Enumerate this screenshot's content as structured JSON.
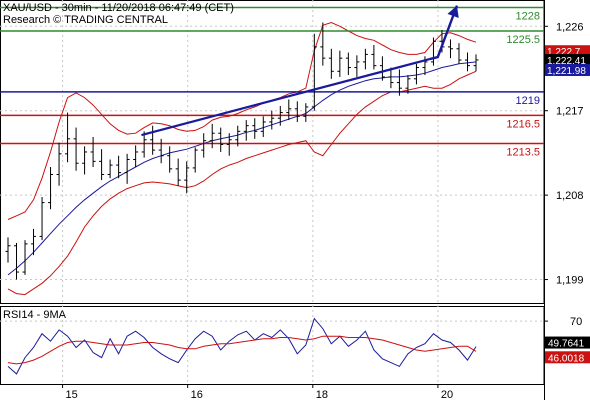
{
  "header": {
    "title_line": "XAU/USD - 30min - 11/20/2018 06:47:49 (CET)",
    "source_line": "Research © TRADING CENTRAL"
  },
  "chart_data": [
    {
      "type": "candlestick",
      "price_axis_ticks": [
        "1,226",
        "1,217",
        "1,208",
        "1,199"
      ],
      "price_axis_values": [
        1226,
        1217,
        1208,
        1199
      ],
      "ylim": [
        1196.5,
        1228.8
      ],
      "x_axis_ticks": [
        "15",
        "16",
        "18",
        "20"
      ],
      "levels": [
        {
          "name": "resistance-1228",
          "label": "1228",
          "value": 1228,
          "color": "#2e8b2e"
        },
        {
          "name": "resistance-1225-5",
          "label": "1225.5",
          "value": 1225.5,
          "color": "#2e8b2e"
        },
        {
          "name": "pivot-1219",
          "label": "1219",
          "value": 1219,
          "color": "#1a1a9c"
        },
        {
          "name": "support-1216-5",
          "label": "1216.5",
          "value": 1216.5,
          "color": "#cc1111"
        },
        {
          "name": "support-1213-5",
          "label": "1213.5",
          "value": 1213.5,
          "color": "#cc1111"
        }
      ],
      "price_tags": [
        {
          "label": "1,222.7",
          "value": 1222.7,
          "bg": "#cc1111"
        },
        {
          "label": "1,222.41",
          "value": 1222.41,
          "bg": "#000000"
        },
        {
          "label": "1,221.98",
          "value": 1221.98,
          "bg": "#1a1a9c"
        }
      ],
      "trendline": {
        "from": [
          0.26,
          1214.4
        ],
        "to": [
          0.79,
          1222.5
        ],
        "color": "#1a1a9c"
      },
      "projection_arrow": {
        "from": [
          0.79,
          1222.5
        ],
        "to": [
          0.84,
          1228.2
        ],
        "color": "#1a1a9c"
      },
      "ohlc": [
        [
          1202.0,
          1203.5,
          1200.8,
          1202.6
        ],
        [
          1202.6,
          1202.9,
          1199.0,
          1199.8
        ],
        [
          1199.8,
          1203.2,
          1199.5,
          1202.8
        ],
        [
          1202.8,
          1204.4,
          1201.6,
          1203.6
        ],
        [
          1203.6,
          1207.8,
          1203.2,
          1207.2
        ],
        [
          1207.2,
          1211.0,
          1206.5,
          1210.2
        ],
        [
          1210.2,
          1213.6,
          1209.0,
          1212.4
        ],
        [
          1212.4,
          1216.8,
          1211.5,
          1214.0
        ],
        [
          1214.0,
          1215.2,
          1210.6,
          1211.4
        ],
        [
          1211.4,
          1213.2,
          1210.2,
          1212.6
        ],
        [
          1212.6,
          1214.2,
          1211.0,
          1211.6
        ],
        [
          1211.6,
          1212.9,
          1209.6,
          1210.2
        ],
        [
          1210.2,
          1211.8,
          1209.8,
          1211.2
        ],
        [
          1211.2,
          1212.2,
          1209.8,
          1210.4
        ],
        [
          1210.4,
          1212.4,
          1209.2,
          1211.8
        ],
        [
          1211.8,
          1213.3,
          1211.0,
          1212.6
        ],
        [
          1212.6,
          1214.8,
          1212.0,
          1213.9
        ],
        [
          1213.9,
          1215.4,
          1212.3,
          1212.8
        ],
        [
          1212.8,
          1214.0,
          1211.4,
          1212.2
        ],
        [
          1212.2,
          1213.2,
          1210.4,
          1210.8
        ],
        [
          1210.8,
          1211.9,
          1209.0,
          1209.6
        ],
        [
          1209.6,
          1211.6,
          1208.2,
          1210.9
        ],
        [
          1210.9,
          1213.1,
          1210.4,
          1212.8
        ],
        [
          1212.8,
          1214.6,
          1212.0,
          1213.8
        ],
        [
          1213.8,
          1215.6,
          1213.0,
          1214.6
        ],
        [
          1214.6,
          1215.2,
          1212.6,
          1213.4
        ],
        [
          1213.4,
          1214.6,
          1212.2,
          1213.9
        ],
        [
          1213.9,
          1215.4,
          1213.2,
          1214.8
        ],
        [
          1214.8,
          1216.0,
          1213.8,
          1215.4
        ],
        [
          1215.4,
          1216.2,
          1214.0,
          1214.8
        ],
        [
          1214.8,
          1216.4,
          1214.2,
          1215.8
        ],
        [
          1215.8,
          1217.0,
          1215.0,
          1216.2
        ],
        [
          1216.2,
          1217.5,
          1215.4,
          1216.8
        ],
        [
          1216.8,
          1218.2,
          1216.0,
          1217.2
        ],
        [
          1217.2,
          1218.0,
          1215.8,
          1216.4
        ],
        [
          1216.4,
          1217.8,
          1215.8,
          1217.4
        ],
        [
          1217.4,
          1225.2,
          1217.0,
          1223.8
        ],
        [
          1223.8,
          1226.4,
          1221.8,
          1222.6
        ],
        [
          1222.6,
          1223.6,
          1220.4,
          1221.2
        ],
        [
          1221.2,
          1223.4,
          1220.6,
          1222.6
        ],
        [
          1222.6,
          1223.2,
          1220.8,
          1221.6
        ],
        [
          1221.6,
          1222.9,
          1220.6,
          1222.2
        ],
        [
          1222.2,
          1223.6,
          1221.4,
          1223.0
        ],
        [
          1223.0,
          1224.0,
          1221.4,
          1221.8
        ],
        [
          1221.8,
          1222.8,
          1220.2,
          1220.6
        ],
        [
          1220.6,
          1221.6,
          1219.4,
          1220.0
        ],
        [
          1220.0,
          1221.4,
          1218.6,
          1219.4
        ],
        [
          1219.4,
          1220.8,
          1218.8,
          1220.4
        ],
        [
          1220.4,
          1222.0,
          1219.8,
          1221.6
        ],
        [
          1221.6,
          1222.8,
          1220.8,
          1222.2
        ],
        [
          1222.2,
          1224.8,
          1221.8,
          1224.4
        ],
        [
          1224.4,
          1225.6,
          1223.2,
          1223.8
        ],
        [
          1223.8,
          1224.6,
          1222.6,
          1223.6
        ],
        [
          1223.6,
          1224.2,
          1222.0,
          1222.4
        ],
        [
          1222.4,
          1223.2,
          1221.2,
          1221.8
        ],
        [
          1221.8,
          1223.0,
          1221.2,
          1222.41
        ]
      ],
      "ma_series": [
        1199.5,
        1200.2,
        1201.0,
        1201.9,
        1202.9,
        1203.9,
        1204.9,
        1205.8,
        1206.7,
        1207.5,
        1208.2,
        1208.9,
        1209.5,
        1210.0,
        1210.5,
        1211.0,
        1211.5,
        1211.9,
        1212.2,
        1212.5,
        1212.7,
        1212.9,
        1213.2,
        1213.5,
        1213.8,
        1214.0,
        1214.2,
        1214.4,
        1214.7,
        1214.9,
        1215.2,
        1215.5,
        1215.8,
        1216.1,
        1216.4,
        1216.7,
        1217.4,
        1218.1,
        1218.7,
        1219.2,
        1219.6,
        1219.9,
        1220.2,
        1220.4,
        1220.5,
        1220.6,
        1220.6,
        1220.7,
        1220.8,
        1221.0,
        1221.3,
        1221.6,
        1221.8,
        1222.0,
        1222.1,
        1222.2
      ],
      "bb_upper": [
        1205.4,
        1205.8,
        1206.2,
        1207.5,
        1209.8,
        1212.6,
        1215.8,
        1218.4,
        1218.9,
        1218.4,
        1217.6,
        1216.6,
        1215.6,
        1214.9,
        1214.5,
        1214.6,
        1215.2,
        1215.7,
        1215.6,
        1215.4,
        1215.0,
        1214.8,
        1214.9,
        1215.3,
        1216.0,
        1216.3,
        1216.4,
        1216.7,
        1217.1,
        1217.4,
        1217.8,
        1218.1,
        1218.4,
        1218.8,
        1219.0,
        1219.4,
        1223.4,
        1226.1,
        1226.4,
        1226.0,
        1225.5,
        1225.0,
        1224.7,
        1224.5,
        1224.0,
        1223.5,
        1223.2,
        1223.0,
        1223.0,
        1223.2,
        1224.3,
        1225.2,
        1225.3,
        1225.0,
        1224.6,
        1224.3
      ],
      "bb_lower": [
        1198.0,
        1197.5,
        1197.4,
        1198.0,
        1198.6,
        1199.4,
        1200.4,
        1201.5,
        1203.0,
        1204.6,
        1205.8,
        1206.8,
        1207.6,
        1208.2,
        1208.7,
        1209.0,
        1209.3,
        1209.4,
        1209.3,
        1209.2,
        1209.0,
        1208.8,
        1209.0,
        1209.5,
        1210.2,
        1210.8,
        1211.2,
        1211.5,
        1211.9,
        1212.2,
        1212.5,
        1212.8,
        1213.1,
        1213.4,
        1213.6,
        1213.8,
        1212.6,
        1212.2,
        1213.4,
        1214.6,
        1215.6,
        1216.6,
        1217.4,
        1218.0,
        1218.6,
        1219.0,
        1219.0,
        1219.2,
        1219.4,
        1219.6,
        1219.4,
        1219.4,
        1219.8,
        1220.4,
        1220.8,
        1221.2
      ]
    },
    {
      "type": "line",
      "title": "RSI14 - 9MA",
      "y_axis_ticks": [
        "70"
      ],
      "y_axis_values": [
        70
      ],
      "ylim": [
        20,
        82
      ],
      "value_tags": [
        {
          "label": "49.7641",
          "value": 49.7641,
          "bg": "#000000"
        },
        {
          "label": "46.0018",
          "value": 46.0018,
          "bg": "#cc1111"
        }
      ],
      "series": [
        {
          "color": "#1a1a9c",
          "values": [
            34,
            28,
            41,
            49,
            60,
            54,
            63,
            58,
            49,
            55,
            45,
            41,
            56,
            44,
            58,
            62,
            57,
            49,
            44,
            40,
            37,
            47,
            56,
            62,
            58,
            47,
            54,
            59,
            62,
            55,
            60,
            57,
            63,
            56,
            44,
            51,
            72,
            64,
            52,
            58,
            50,
            55,
            62,
            47,
            40,
            37,
            34,
            44,
            49,
            52,
            60,
            55,
            53,
            47,
            39,
            49.76
          ]
        },
        {
          "color": "#cc1111",
          "values": [
            37,
            36,
            37,
            39,
            42,
            46,
            50,
            53,
            54,
            54,
            53,
            52,
            51,
            51,
            51,
            52,
            53,
            53,
            52,
            51,
            49,
            48,
            48,
            50,
            51,
            52,
            52,
            53,
            54,
            55,
            56,
            56,
            57,
            57,
            56,
            55,
            56,
            58,
            58,
            58,
            57,
            57,
            57,
            56,
            55,
            53,
            51,
            49,
            47,
            46,
            47,
            48,
            49,
            50,
            50,
            46.0
          ]
        }
      ]
    }
  ]
}
